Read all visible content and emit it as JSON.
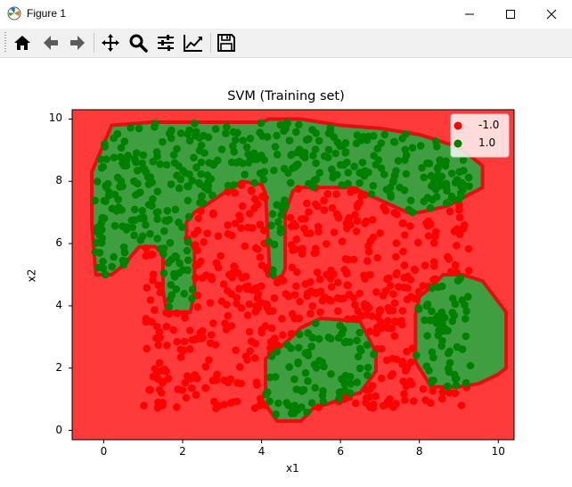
{
  "window": {
    "title": "Figure 1"
  },
  "toolbar": {
    "buttons": [
      {
        "icon": "home-icon",
        "tooltip": "Home"
      },
      {
        "icon": "back-arrow-icon",
        "tooltip": "Back"
      },
      {
        "icon": "forward-arrow-icon",
        "tooltip": "Forward"
      },
      {
        "icon": "pan-icon",
        "tooltip": "Pan"
      },
      {
        "icon": "zoom-icon",
        "tooltip": "Zoom"
      },
      {
        "icon": "subplots-icon",
        "tooltip": "Configure subplots"
      },
      {
        "icon": "edit-curves-icon",
        "tooltip": "Edit axis"
      },
      {
        "icon": "save-icon",
        "tooltip": "Save"
      }
    ]
  },
  "colors": {
    "class_neg": "#ff0000",
    "class_pos": "#008000",
    "region_neg": "#ff3a3a",
    "region_pos": "#3f9e3f"
  },
  "chart_data": {
    "type": "scatter",
    "title": "SVM (Training set)",
    "xlabel": "x1",
    "ylabel": "x2",
    "xlim": [
      -0.8,
      10.4
    ],
    "ylim": [
      -0.3,
      10.3
    ],
    "xticks": [
      "0",
      "2",
      "4",
      "6",
      "8",
      "10"
    ],
    "yticks": [
      "0",
      "2",
      "4",
      "6",
      "8",
      "10"
    ],
    "legend": {
      "position": "top-right",
      "entries": [
        "-1.0",
        "1.0"
      ]
    },
    "series": [
      {
        "name": "-1.0",
        "color": "#ff0000",
        "region": "red background (class -1.0)"
      },
      {
        "name": "1.0",
        "color": "#008000",
        "region_polygons": [
          [
            [
              -0.3,
              6.6
            ],
            [
              -0.3,
              8.3
            ],
            [
              0.2,
              9.8
            ],
            [
              1.2,
              9.9
            ],
            [
              4.0,
              9.9
            ],
            [
              4.2,
              10.0
            ],
            [
              5.0,
              10.0
            ],
            [
              6.0,
              9.8
            ],
            [
              7.0,
              9.7
            ],
            [
              8.0,
              9.5
            ],
            [
              9.0,
              9.1
            ],
            [
              9.6,
              8.5
            ],
            [
              9.6,
              7.8
            ],
            [
              9.3,
              7.6
            ],
            [
              8.7,
              7.2
            ],
            [
              8.0,
              7.0
            ],
            [
              7.7,
              7.0
            ],
            [
              7.0,
              7.4
            ],
            [
              6.3,
              7.8
            ],
            [
              5.0,
              7.8
            ],
            [
              4.8,
              7.7
            ],
            [
              4.6,
              7.0
            ],
            [
              4.6,
              5.2
            ],
            [
              4.5,
              4.9
            ],
            [
              4.3,
              4.9
            ],
            [
              4.2,
              5.3
            ],
            [
              4.1,
              7.6
            ],
            [
              4.0,
              7.9
            ],
            [
              3.5,
              8.0
            ],
            [
              2.3,
              7.0
            ],
            [
              2.1,
              6.7
            ],
            [
              2.1,
              6.2
            ],
            [
              2.3,
              5.8
            ],
            [
              2.3,
              4.5
            ],
            [
              2.2,
              3.8
            ],
            [
              1.6,
              3.8
            ],
            [
              1.5,
              4.5
            ],
            [
              1.5,
              5.7
            ],
            [
              1.3,
              5.9
            ],
            [
              0.9,
              5.9
            ],
            [
              0.5,
              5.3
            ],
            [
              0.2,
              5.0
            ],
            [
              -0.2,
              5.0
            ]
          ],
          [
            [
              4.1,
              2.3
            ],
            [
              4.1,
              1.3
            ],
            [
              4.0,
              1.0
            ],
            [
              4.4,
              0.3
            ],
            [
              5.0,
              0.3
            ],
            [
              5.3,
              0.7
            ],
            [
              5.8,
              0.9
            ],
            [
              6.1,
              1.1
            ],
            [
              6.5,
              1.2
            ],
            [
              6.9,
              1.9
            ],
            [
              6.9,
              2.5
            ],
            [
              6.7,
              3.0
            ],
            [
              6.5,
              3.5
            ],
            [
              5.5,
              3.6
            ],
            [
              5.0,
              3.3
            ],
            [
              4.6,
              2.8
            ]
          ],
          [
            [
              8.0,
              2.0
            ],
            [
              8.3,
              1.4
            ],
            [
              9.0,
              1.4
            ],
            [
              9.5,
              1.5
            ],
            [
              10.0,
              1.8
            ],
            [
              10.2,
              2.0
            ],
            [
              10.2,
              3.8
            ],
            [
              9.6,
              4.8
            ],
            [
              9.1,
              5.0
            ],
            [
              8.6,
              5.0
            ],
            [
              8.3,
              4.6
            ],
            [
              8.0,
              4.3
            ],
            [
              7.9,
              3.7
            ],
            [
              7.9,
              2.2
            ]
          ]
        ]
      }
    ]
  }
}
